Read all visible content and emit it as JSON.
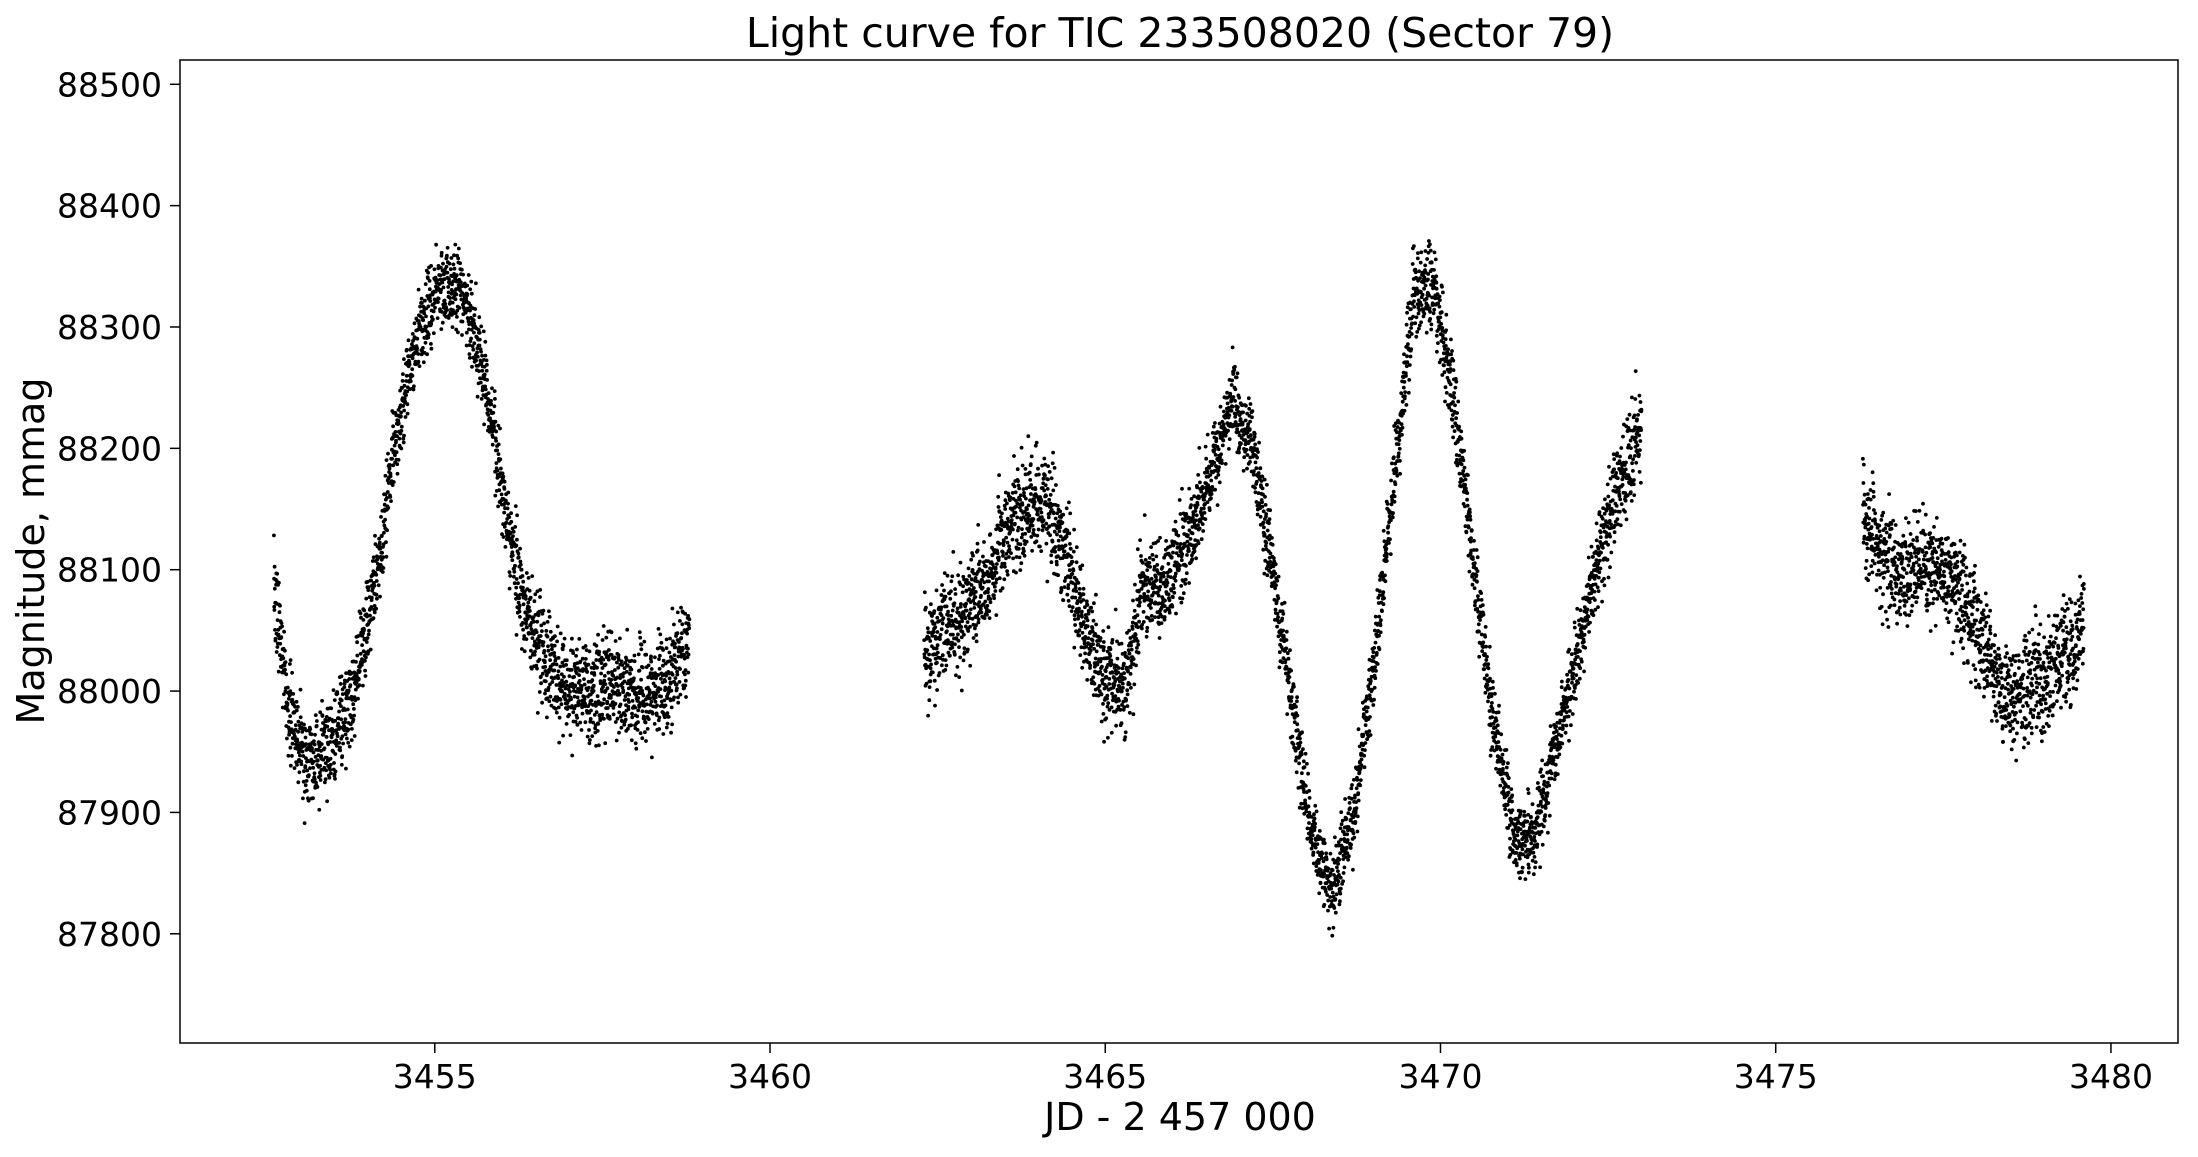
{
  "chart_data": {
    "type": "scatter",
    "title": "Light curve for TIC 233508020 (Sector 79)",
    "xlabel": "JD - 2 457 000",
    "ylabel": "Magnitude, mmag",
    "xlim": [
      3451.2,
      3481.0
    ],
    "ylim": [
      87710,
      88520
    ],
    "x_ticks": [
      3455,
      3460,
      3465,
      3470,
      3475,
      3480
    ],
    "y_ticks": [
      87800,
      87900,
      88000,
      88100,
      88200,
      88300,
      88400,
      88500
    ],
    "x_tick_labels": [
      "3455",
      "3460",
      "3465",
      "3470",
      "3475",
      "3480"
    ],
    "y_tick_labels": [
      "87800",
      "87900",
      "88000",
      "88100",
      "88200",
      "88300",
      "88400",
      "88500"
    ],
    "grid": false,
    "legend": "none",
    "marker_color": "#000000",
    "series": [
      {
        "x": [
          3452.6,
          3452.8,
          3453.0,
          3453.2,
          3453.4,
          3453.6,
          3453.8,
          3454.0,
          3454.2,
          3454.4,
          3454.6,
          3454.8,
          3455.0,
          3455.2,
          3455.4,
          3455.6,
          3455.8,
          3456.0,
          3456.2,
          3456.4,
          3456.6,
          3456.8,
          3457.0,
          3457.3,
          3457.6,
          3457.9,
          3458.2,
          3458.5,
          3458.8,
          3462.3,
          3462.6,
          3462.9,
          3463.2,
          3463.5,
          3463.8,
          3464.1,
          3464.4,
          3464.7,
          3465.0,
          3465.3,
          3465.6,
          3465.8,
          3466.0,
          3466.3,
          3466.6,
          3466.9,
          3467.2,
          3467.5,
          3467.8,
          3468.1,
          3468.4,
          3468.7,
          3469.0,
          3469.3,
          3469.6,
          3469.9,
          3470.2,
          3470.5,
          3470.8,
          3471.1,
          3471.4,
          3471.7,
          3472.0,
          3472.3,
          3472.6,
          3473.0,
          3476.3,
          3476.6,
          3476.9,
          3477.2,
          3477.5,
          3477.8,
          3478.1,
          3478.4,
          3478.7,
          3479.0,
          3479.3,
          3479.6
        ],
        "y": [
          88080,
          87990,
          87950,
          87940,
          87955,
          87970,
          88000,
          88060,
          88120,
          88200,
          88265,
          88300,
          88325,
          88335,
          88330,
          88295,
          88240,
          88170,
          88105,
          88060,
          88030,
          88015,
          88005,
          88000,
          88005,
          88000,
          87995,
          88010,
          88045,
          88030,
          88050,
          88065,
          88090,
          88130,
          88150,
          88155,
          88120,
          88050,
          88010,
          88005,
          88090,
          88080,
          88100,
          88130,
          88185,
          88240,
          88200,
          88100,
          87980,
          87880,
          87830,
          87900,
          88020,
          88170,
          88320,
          88335,
          88240,
          88100,
          87970,
          87880,
          87880,
          87950,
          88020,
          88100,
          88160,
          88220,
          88150,
          88110,
          88095,
          88105,
          88100,
          88080,
          88030,
          87995,
          88000,
          88010,
          88030,
          88050
        ],
        "spread": [
          35,
          35,
          35,
          35,
          35,
          35,
          35,
          35,
          30,
          30,
          30,
          30,
          30,
          30,
          30,
          30,
          30,
          30,
          35,
          40,
          40,
          40,
          40,
          40,
          40,
          40,
          40,
          40,
          40,
          40,
          40,
          40,
          40,
          40,
          40,
          40,
          40,
          40,
          40,
          40,
          40,
          35,
          35,
          35,
          30,
          30,
          30,
          30,
          30,
          30,
          30,
          30,
          30,
          30,
          35,
          35,
          30,
          30,
          30,
          30,
          30,
          30,
          30,
          30,
          35,
          40,
          40,
          40,
          40,
          40,
          40,
          40,
          40,
          40,
          40,
          40,
          40,
          40
        ]
      }
    ]
  }
}
